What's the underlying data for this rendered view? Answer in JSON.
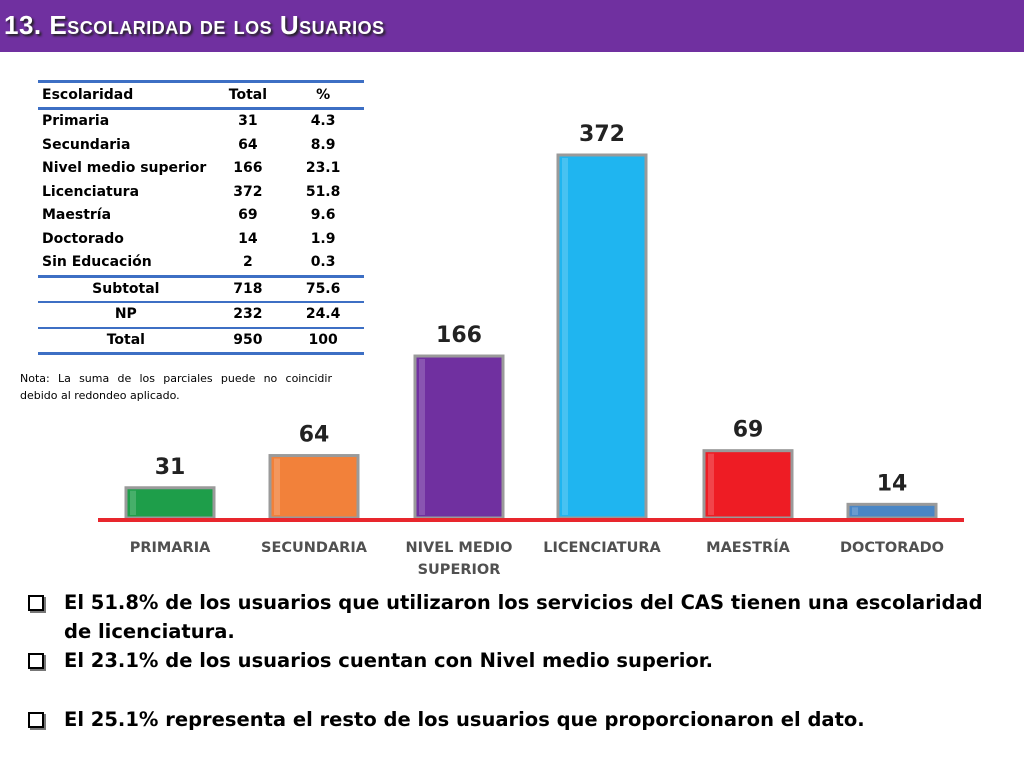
{
  "header": {
    "title": "13. Escolaridad de los Usuarios"
  },
  "table": {
    "headers": [
      "Escolaridad",
      "Total",
      "%"
    ],
    "rows": [
      [
        "Primaria",
        "31",
        "4.3"
      ],
      [
        "Secundaria",
        "64",
        "8.9"
      ],
      [
        "Nivel medio superior",
        "166",
        "23.1"
      ],
      [
        "Licenciatura",
        "372",
        "51.8"
      ],
      [
        "Maestría",
        "69",
        "9.6"
      ],
      [
        "Doctorado",
        "14",
        "1.9"
      ],
      [
        "Sin Educación",
        "2",
        "0.3"
      ]
    ],
    "summary": [
      [
        "Subtotal",
        "718",
        "75.6"
      ],
      [
        "NP",
        "232",
        "24.4"
      ],
      [
        "Total",
        "950",
        "100"
      ]
    ]
  },
  "note": "Nota: La suma de los parciales puede no coincidir debido al redondeo aplicado.",
  "chart_data": {
    "type": "bar",
    "categories": [
      "PRIMARIA",
      "SECUNDARIA",
      "NIVEL MEDIO SUPERIOR",
      "LICENCIATURA",
      "MAESTRÍA",
      "DOCTORADO"
    ],
    "category_lines": [
      [
        "PRIMARIA"
      ],
      [
        "SECUNDARIA"
      ],
      [
        "NIVEL MEDIO",
        "SUPERIOR"
      ],
      [
        "LICENCIATURA"
      ],
      [
        "MAESTRÍA"
      ],
      [
        "DOCTORADO"
      ]
    ],
    "values": [
      31,
      64,
      166,
      372,
      69,
      14
    ],
    "data_labels": [
      "31",
      "64",
      "166",
      "372",
      "69",
      "14"
    ],
    "colors": [
      "#1e9e4a",
      "#f2813a",
      "#7030a0",
      "#1fb5f0",
      "#ee1c24",
      "#4a86c5"
    ],
    "baseline_color": "#e8262d",
    "ylim": [
      0,
      372
    ],
    "xlabel": "",
    "ylabel": "",
    "title": ""
  },
  "bullets": [
    "El 51.8% de los usuarios que utilizaron los servicios del CAS tienen una escolaridad de licenciatura.",
    "El 23.1% de los usuarios cuentan con Nivel medio superior.",
    "El  25.1% representa el resto de los usuarios que proporcionaron el dato."
  ],
  "colors": {
    "accent": "#7030a0",
    "table_rule": "#3d6fc4"
  }
}
